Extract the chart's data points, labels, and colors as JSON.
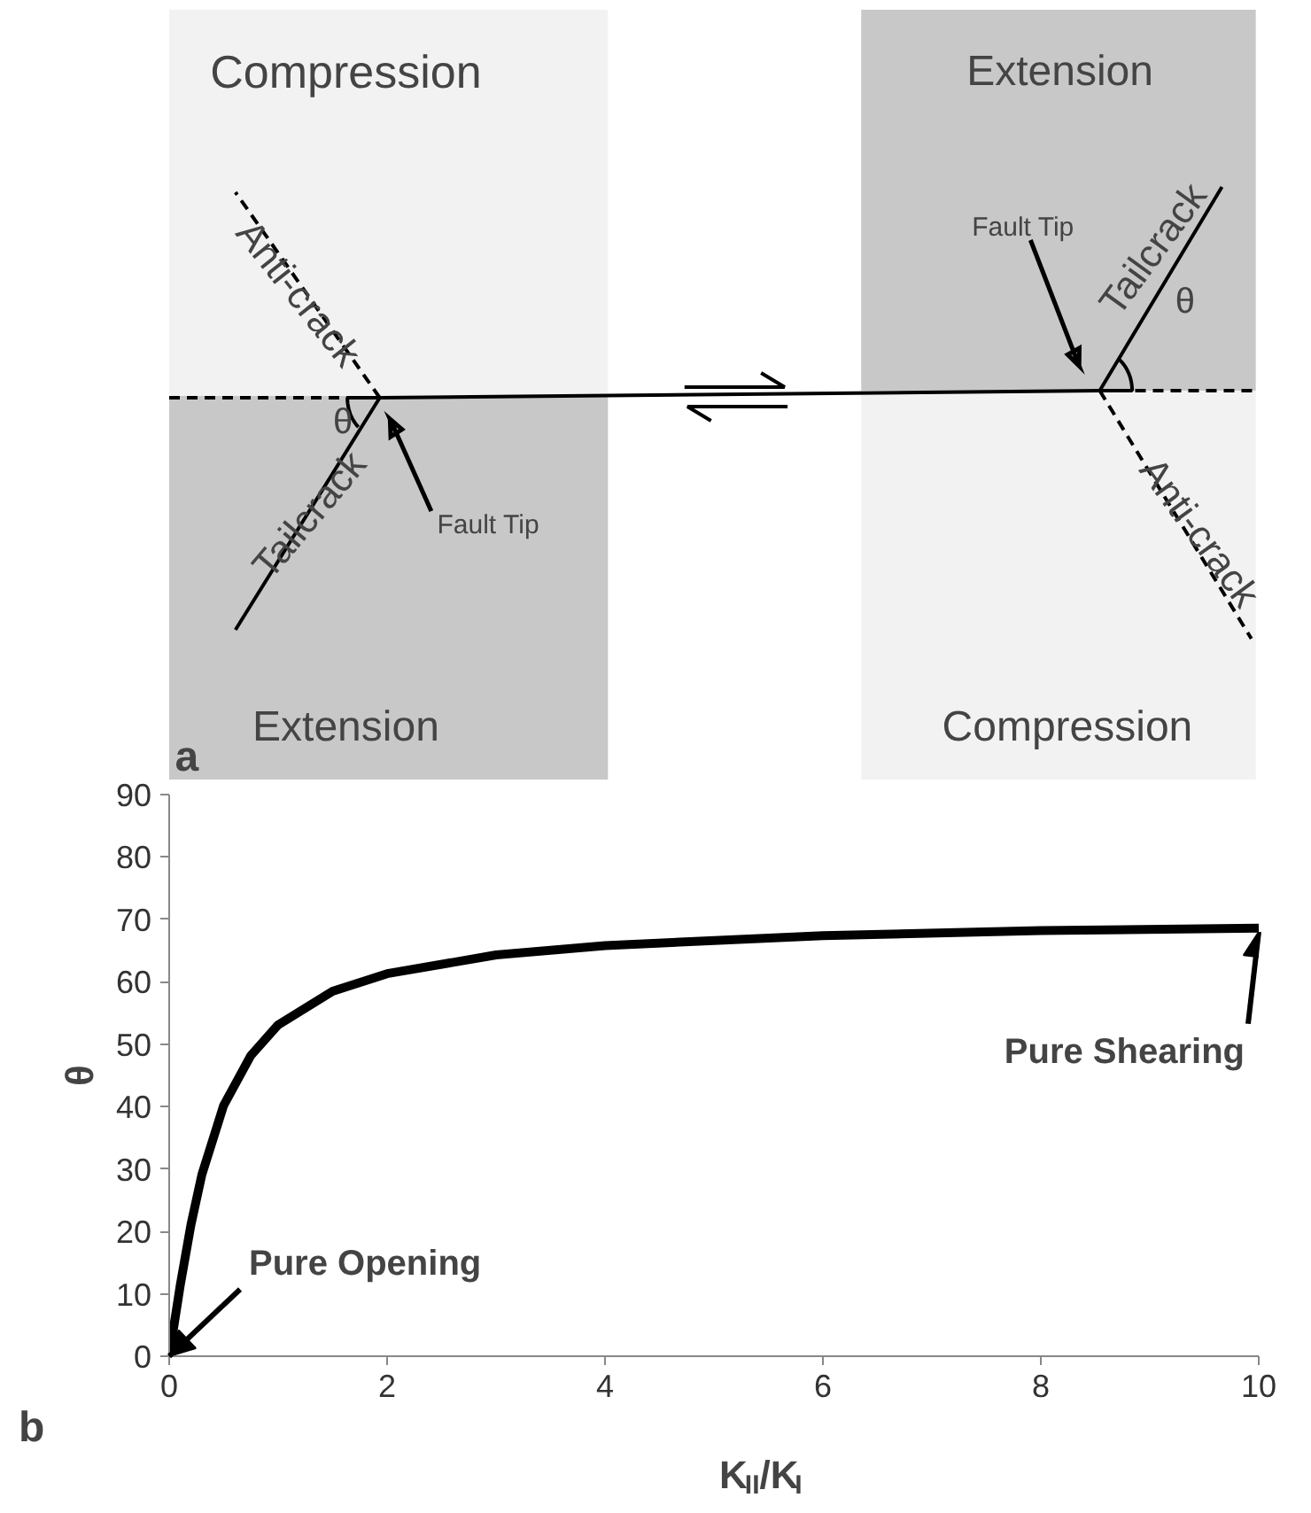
{
  "chart_data": [
    {
      "type": "other",
      "annotations": [
        "Compression",
        "Anti-crack",
        "θ",
        "Tailcrack",
        "Fault Tip",
        "Extension",
        "a",
        "Extension",
        "Fault Tip",
        "Tailcrack",
        "θ",
        "Anti-crack",
        "Compression"
      ]
    },
    {
      "type": "line",
      "xlabel": "K$_{II}$/K$_{I}$",
      "ylabel": "θ",
      "x": [
        0,
        0.1,
        0.2,
        0.3,
        0.5,
        0.75,
        1,
        1.5,
        2,
        3,
        4,
        6,
        8,
        10
      ],
      "series": [
        {
          "color": "#000000",
          "values": [
            0,
            11.2,
            21.1,
            29.1,
            40.2,
            48.2,
            53.1,
            58.5,
            61.3,
            64.3,
            65.8,
            67.4,
            68.2,
            68.6
          ]
        }
      ],
      "xlim": [
        0,
        10
      ],
      "ylim": [
        0,
        90
      ],
      "xticks": [
        0,
        2,
        4,
        6,
        8,
        10
      ],
      "yticks": [
        0,
        10,
        20,
        30,
        40,
        50,
        60,
        70,
        80,
        90
      ],
      "grid": false,
      "marker": "none",
      "line_style": "solid",
      "annotations": [
        "b",
        {
          "text": "Pure Opening",
          "x": 0,
          "y": 0
        },
        {
          "text": "Pure Shearing",
          "x": 10,
          "y": 68
        }
      ]
    }
  ]
}
